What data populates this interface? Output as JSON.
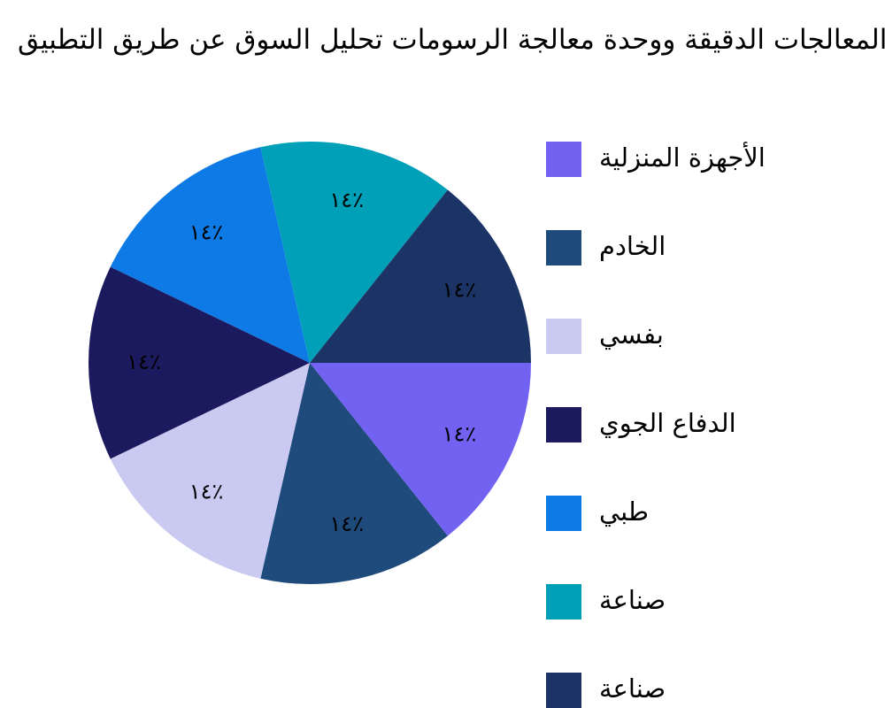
{
  "chart_data": {
    "type": "pie",
    "title": "المعالجات الدقيقة ووحدة معالجة الرسومات تحليل السوق عن طريق التطبيق",
    "categories": [
      "الأجهزة المنزلية",
      "الخادم",
      "بفسي",
      "الدفاع الجوي",
      "طبي",
      "صناعة",
      "صناعة"
    ],
    "values": [
      14.3,
      14.3,
      14.3,
      14.3,
      14.3,
      14.3,
      14.3
    ],
    "value_labels": [
      "١٤٪",
      "١٤٪",
      "١٤٪",
      "١٤٪",
      "١٤٪",
      "١٤٪",
      "١٤٪"
    ],
    "colors": [
      "#7262f2",
      "#1f4a7c",
      "#c9c9f2",
      "#1c1a5e",
      "#0e7ae6",
      "#00a0b8",
      "#1c3366"
    ],
    "legend": "right"
  }
}
